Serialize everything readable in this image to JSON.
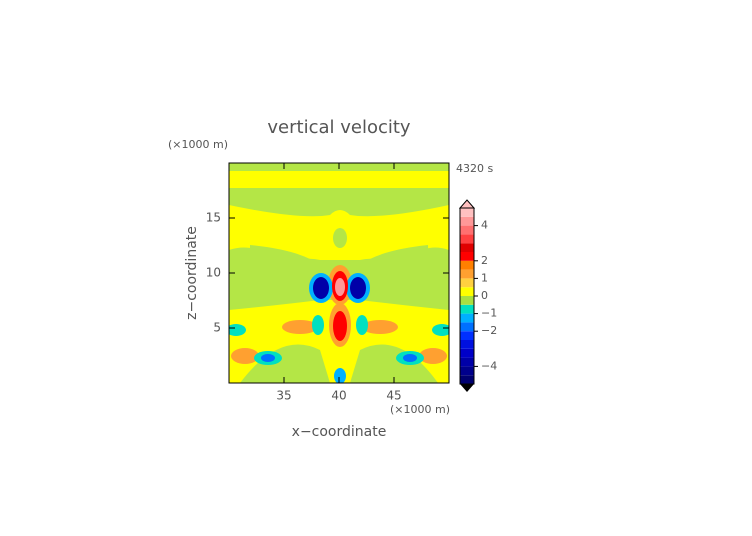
{
  "chart_data": {
    "type": "contour",
    "title": "vertical velocity",
    "x_label": "x−coordinate",
    "y_label": "z−coordinate",
    "x_unit": "(×1000 m)",
    "y_unit": "(×1000 m)",
    "time_label": "4320 s",
    "xlim": [
      30,
      50
    ],
    "ylim": [
      0,
      20
    ],
    "xticks": [
      35,
      40,
      45
    ],
    "yticks": [
      5,
      10,
      15
    ],
    "colorbar": {
      "lim": [
        -5,
        5
      ],
      "levels": [
        -5,
        -4.5,
        -4,
        -3.5,
        -3,
        -2.5,
        -2,
        -1.5,
        -1,
        -0.5,
        0,
        0.5,
        1,
        1.5,
        2,
        2.5,
        3,
        3.5,
        4,
        4.5,
        5
      ],
      "colors": [
        "#000070",
        "#00008c",
        "#0000a8",
        "#0000c8",
        "#0010e0",
        "#0030ff",
        "#0070ff",
        "#00b0ff",
        "#00e0c0",
        "#a8e040",
        "#ffff00",
        "#ffd040",
        "#ffa030",
        "#ff8000",
        "#ff0000",
        "#e00000",
        "#ff4040",
        "#ff7070",
        "#ff9898",
        "#ffc0c0"
      ],
      "ticks": [
        {
          "value": -4,
          "label": "−4"
        },
        {
          "value": -2,
          "label": "−2"
        },
        {
          "value": -1,
          "label": "−1"
        },
        0,
        1,
        2,
        4
      ]
    }
  }
}
